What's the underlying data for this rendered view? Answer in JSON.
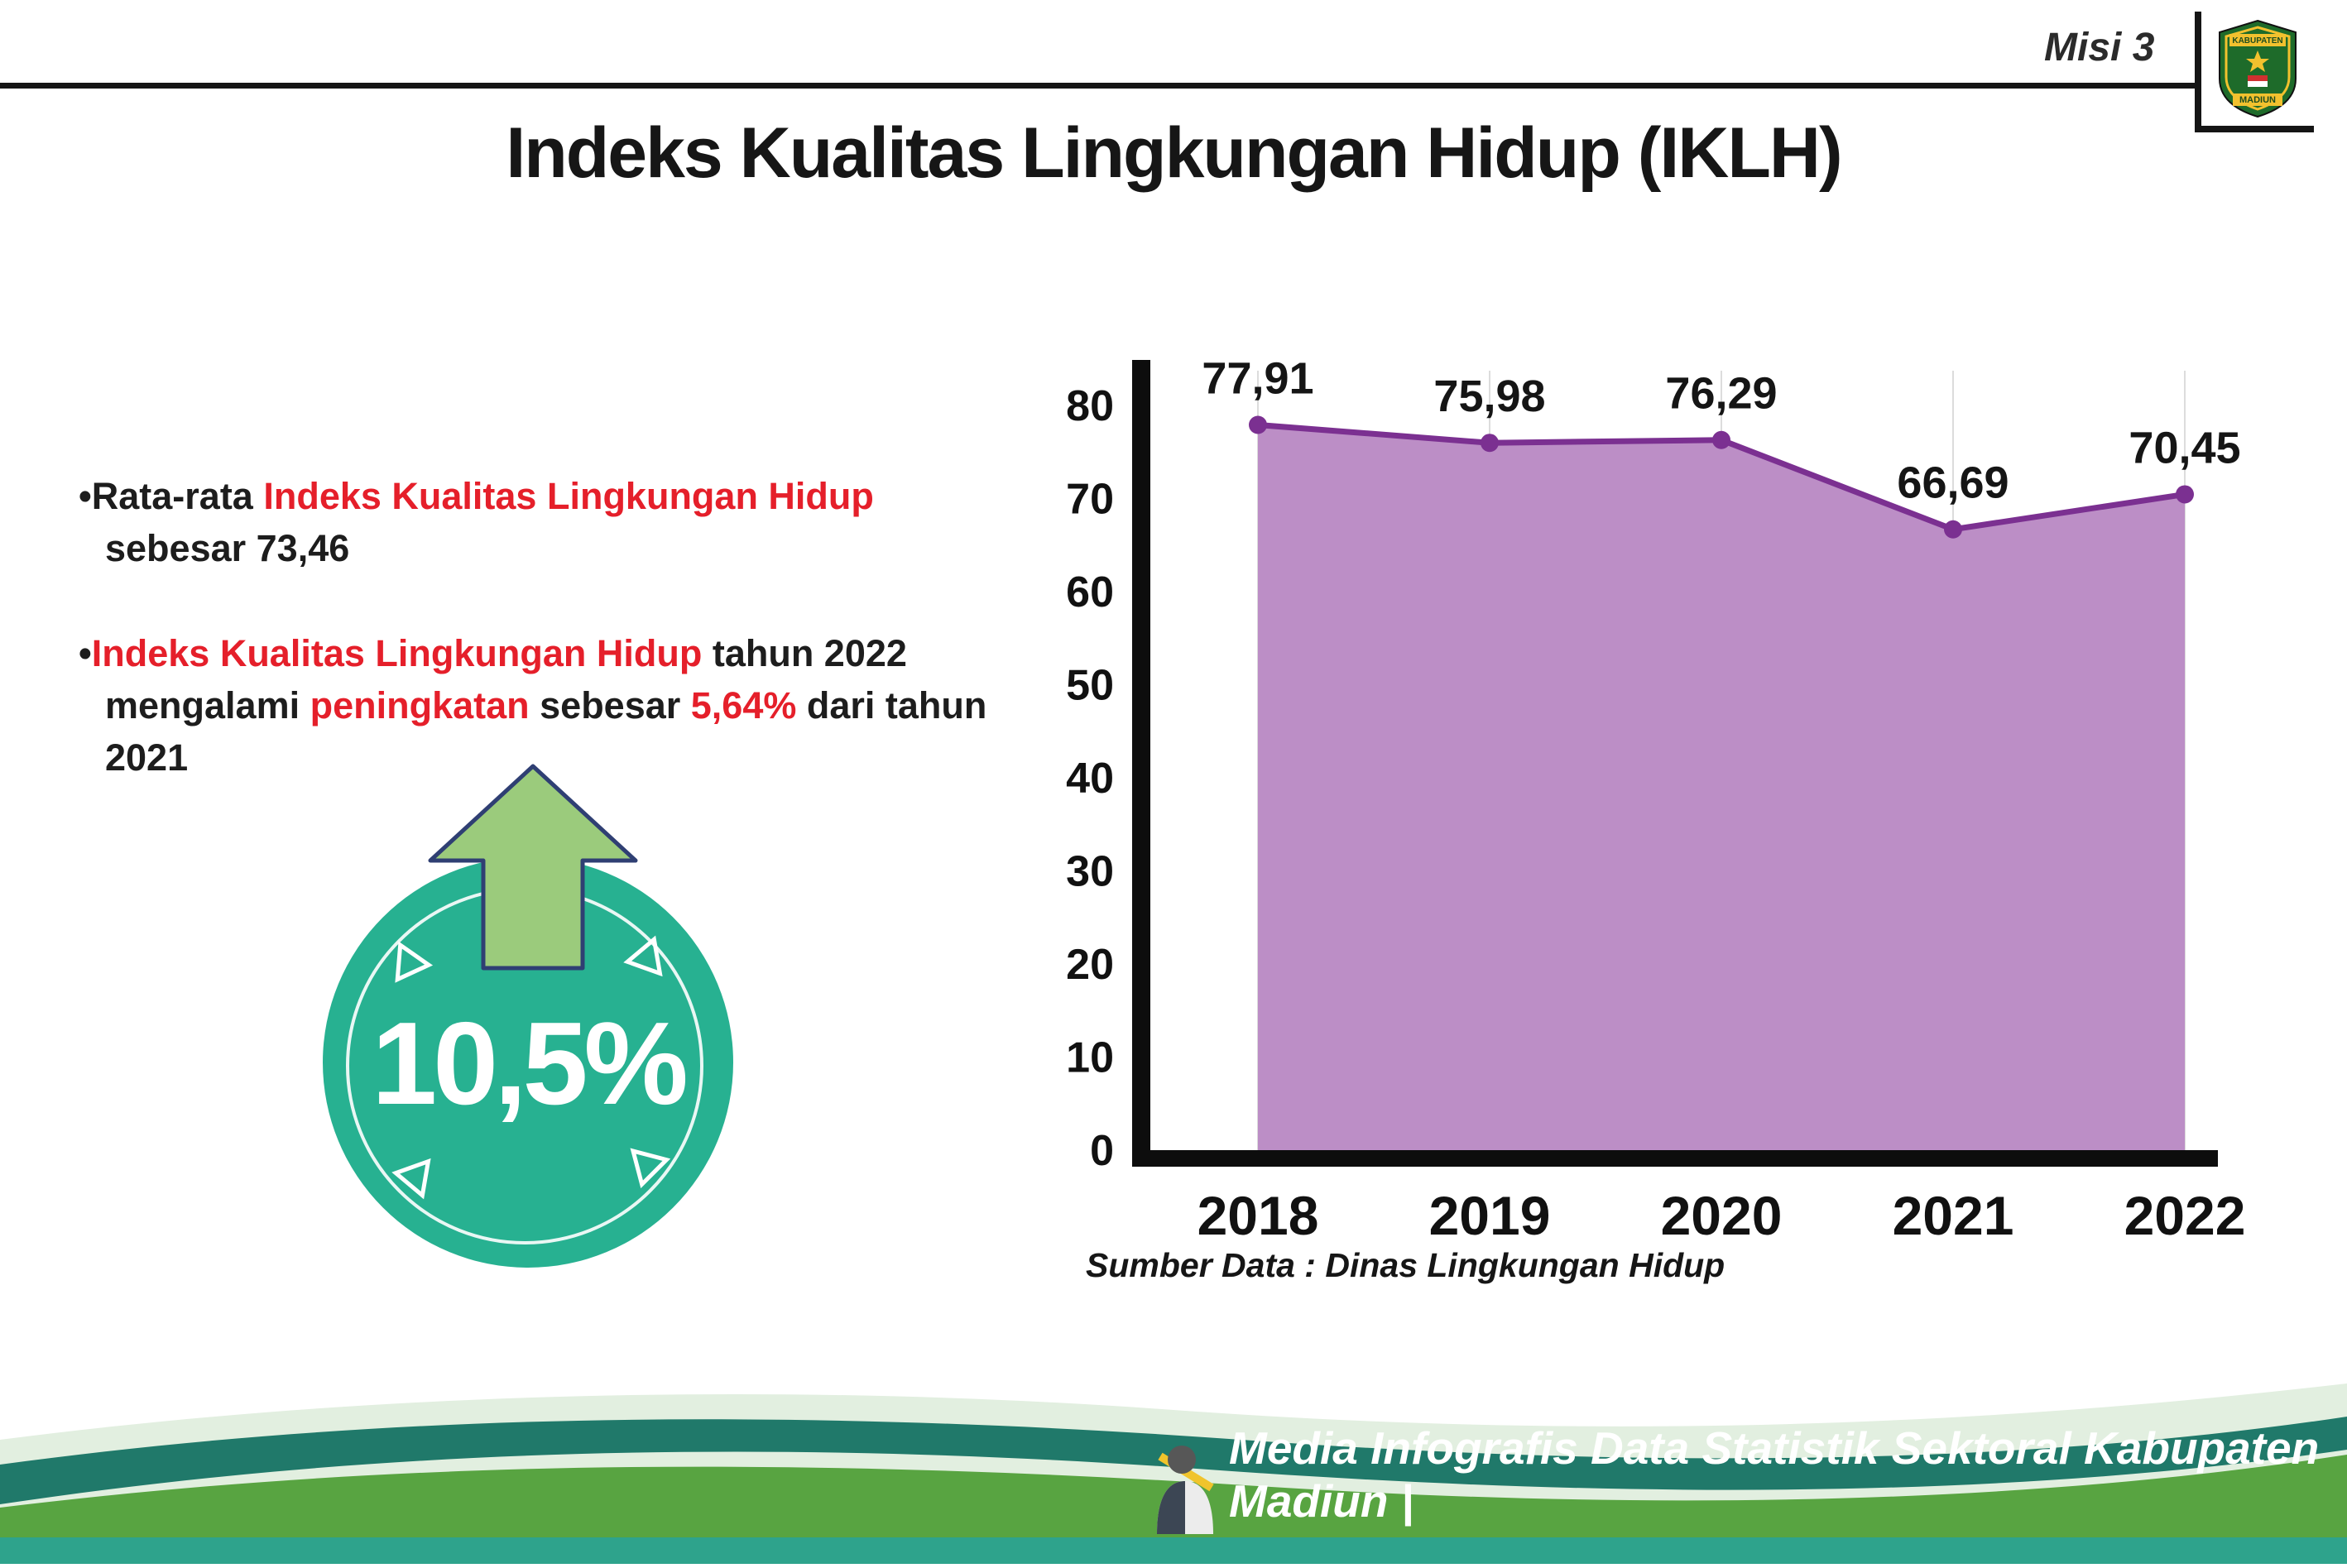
{
  "header": {
    "misi_label": "Misi 3",
    "title": "Indeks Kualitas Lingkungan Hidup (IKLH)",
    "logo": {
      "name": "kabupaten-madiun-logo",
      "top_text": "KABUPATEN",
      "bottom_text": "MADIUN"
    }
  },
  "bullets": [
    {
      "marker": "•",
      "segments": [
        {
          "text": "Rata-rata ",
          "style": "normal"
        },
        {
          "text": "Indeks Kualitas Lingkungan Hidup",
          "style": "red"
        },
        {
          "text": " sebesar 73,46",
          "style": "normal"
        }
      ]
    },
    {
      "marker": "•",
      "segments": [
        {
          "text": "Indeks Kualitas Lingkungan Hidup",
          "style": "red"
        },
        {
          "text": " tahun 2022 mengalami ",
          "style": "normal"
        },
        {
          "text": "peningkatan",
          "style": "red"
        },
        {
          "text": " sebesar ",
          "style": "normal"
        },
        {
          "text": "5,64%",
          "style": "red"
        },
        {
          "text": " dari tahun 2021",
          "style": "normal"
        }
      ]
    }
  ],
  "badge": {
    "value": "10,5%",
    "direction": "up",
    "circle_color": "#27b191",
    "arrow_color": "#9bcb7c"
  },
  "chart_data": {
    "type": "area",
    "categories": [
      "2018",
      "2019",
      "2020",
      "2021",
      "2022"
    ],
    "values": [
      77.91,
      75.98,
      76.29,
      66.69,
      70.45
    ],
    "value_labels": [
      "77,91",
      "75,98",
      "76,29",
      "66,69",
      "70,45"
    ],
    "ylim": [
      0,
      80
    ],
    "yticks": [
      0,
      10,
      20,
      30,
      40,
      50,
      60,
      70,
      80
    ],
    "grid": "vertical-light",
    "legend": "none",
    "fill_color": "#bc8ec6",
    "line_color": "#7b3091",
    "source": "Sumber Data : Dinas Lingkungan Hidup"
  },
  "footer": {
    "credit": "Media Infografis Data Statistik Sektoral Kabupaten Madiun |"
  },
  "colors": {
    "accent_red": "#e51f2a",
    "dark_teal_band": "#20796a",
    "green_band": "#58a441",
    "bottom_strip": "#2ea38c"
  }
}
